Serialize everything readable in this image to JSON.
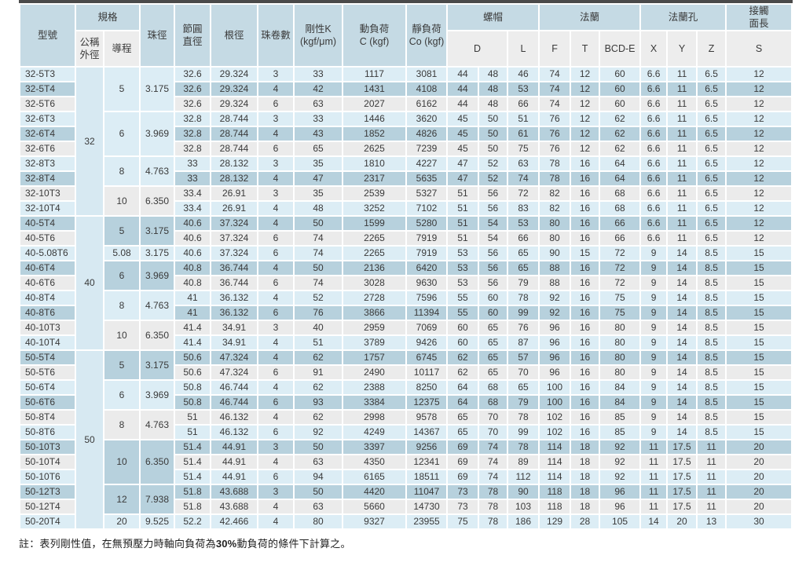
{
  "colors": {
    "top_rule": "#4a4a4a",
    "header_blue": "#c5dae4",
    "subheader_gray": "#ededed",
    "row_light_blue": "#dcedf5",
    "row_dark_blue": "#b7d1dd",
    "row_gray": "#ebebeb",
    "od_cell_blue": "#d7e9f2"
  },
  "table": {
    "header": {
      "model": "型號",
      "spec": "規格",
      "nominal_od": "公稱\n外徑",
      "lead": "導程",
      "ball_dia": "珠徑",
      "pitch_dia": "節圓\n直徑",
      "root_dia": "根徑",
      "circuits": "珠卷數",
      "rigidity": "剛性K\n(kgf/μm)",
      "dynamic_load": "動負荷\nC (kgf)",
      "static_load": "靜負荷\nCo (kgf)",
      "nut": "螺帽",
      "nut_d": "D",
      "nut_l": "L",
      "flange": "法蘭",
      "flange_f": "F",
      "flange_t": "T",
      "flange_bcd": "BCD-E",
      "holes": "法蘭孔",
      "hole_x": "X",
      "hole_y": "Y",
      "hole_z": "Z",
      "contact": "接觸\n面長",
      "contact_s": "S"
    },
    "od_groups": [
      {
        "label": "32",
        "rows": 10
      },
      {
        "label": "40",
        "rows": 9
      },
      {
        "label": "50",
        "rows": 12
      }
    ],
    "lead_groups": [
      {
        "lead": "5",
        "ball": "3.175",
        "rows": 3
      },
      {
        "lead": "6",
        "ball": "3.969",
        "rows": 3
      },
      {
        "lead": "8",
        "ball": "4.763",
        "rows": 2
      },
      {
        "lead": "10",
        "ball": "6.350",
        "rows": 2
      },
      {
        "lead": "5",
        "ball": "3.175",
        "rows": 2
      },
      {
        "lead": "5.08",
        "ball": "3.175",
        "rows": 1
      },
      {
        "lead": "6",
        "ball": "3.969",
        "rows": 2
      },
      {
        "lead": "8",
        "ball": "4.763",
        "rows": 2
      },
      {
        "lead": "10",
        "ball": "6.350",
        "rows": 2
      },
      {
        "lead": "5",
        "ball": "3.175",
        "rows": 2
      },
      {
        "lead": "6",
        "ball": "3.969",
        "rows": 2
      },
      {
        "lead": "8",
        "ball": "4.763",
        "rows": 2
      },
      {
        "lead": "10",
        "ball": "6.350",
        "rows": 3
      },
      {
        "lead": "12",
        "ball": "7.938",
        "rows": 2
      },
      {
        "lead": "20",
        "ball": "9.525",
        "rows": 1
      }
    ],
    "rows": [
      {
        "model": "32-5T3",
        "pcd": "32.6",
        "root": "29.324",
        "circuits": "3",
        "k": "33",
        "c": "1117",
        "co": "3081",
        "d1": "44",
        "d2": "48",
        "l": "46",
        "f": "74",
        "t": "12",
        "bcd": "60",
        "x": "6.6",
        "y": "11",
        "z": "6.5",
        "s": "12"
      },
      {
        "model": "32-5T4",
        "pcd": "32.6",
        "root": "29.324",
        "circuits": "4",
        "k": "42",
        "c": "1431",
        "co": "4108",
        "d1": "44",
        "d2": "48",
        "l": "53",
        "f": "74",
        "t": "12",
        "bcd": "60",
        "x": "6.6",
        "y": "11",
        "z": "6.5",
        "s": "12"
      },
      {
        "model": "32-5T6",
        "pcd": "32.6",
        "root": "29.324",
        "circuits": "6",
        "k": "63",
        "c": "2027",
        "co": "6162",
        "d1": "44",
        "d2": "48",
        "l": "66",
        "f": "74",
        "t": "12",
        "bcd": "60",
        "x": "6.6",
        "y": "11",
        "z": "6.5",
        "s": "12"
      },
      {
        "model": "32-6T3",
        "pcd": "32.8",
        "root": "28.744",
        "circuits": "3",
        "k": "33",
        "c": "1446",
        "co": "3620",
        "d1": "45",
        "d2": "50",
        "l": "51",
        "f": "76",
        "t": "12",
        "bcd": "62",
        "x": "6.6",
        "y": "11",
        "z": "6.5",
        "s": "12"
      },
      {
        "model": "32-6T4",
        "pcd": "32.8",
        "root": "28.744",
        "circuits": "4",
        "k": "43",
        "c": "1852",
        "co": "4826",
        "d1": "45",
        "d2": "50",
        "l": "61",
        "f": "76",
        "t": "12",
        "bcd": "62",
        "x": "6.6",
        "y": "11",
        "z": "6.5",
        "s": "12"
      },
      {
        "model": "32-6T6",
        "pcd": "32.8",
        "root": "28.744",
        "circuits": "6",
        "k": "65",
        "c": "2625",
        "co": "7239",
        "d1": "45",
        "d2": "50",
        "l": "75",
        "f": "76",
        "t": "12",
        "bcd": "62",
        "x": "6.6",
        "y": "11",
        "z": "6.5",
        "s": "12"
      },
      {
        "model": "32-8T3",
        "pcd": "33",
        "root": "28.132",
        "circuits": "3",
        "k": "35",
        "c": "1810",
        "co": "4227",
        "d1": "47",
        "d2": "52",
        "l": "63",
        "f": "78",
        "t": "16",
        "bcd": "64",
        "x": "6.6",
        "y": "11",
        "z": "6.5",
        "s": "12"
      },
      {
        "model": "32-8T4",
        "pcd": "33",
        "root": "28.132",
        "circuits": "4",
        "k": "47",
        "c": "2317",
        "co": "5635",
        "d1": "47",
        "d2": "52",
        "l": "74",
        "f": "78",
        "t": "16",
        "bcd": "64",
        "x": "6.6",
        "y": "11",
        "z": "6.5",
        "s": "12"
      },
      {
        "model": "32-10T3",
        "pcd": "33.4",
        "root": "26.91",
        "circuits": "3",
        "k": "35",
        "c": "2539",
        "co": "5327",
        "d1": "51",
        "d2": "56",
        "l": "72",
        "f": "82",
        "t": "16",
        "bcd": "68",
        "x": "6.6",
        "y": "11",
        "z": "6.5",
        "s": "12"
      },
      {
        "model": "32-10T4",
        "pcd": "33.4",
        "root": "26.91",
        "circuits": "4",
        "k": "48",
        "c": "3252",
        "co": "7102",
        "d1": "51",
        "d2": "56",
        "l": "83",
        "f": "82",
        "t": "16",
        "bcd": "68",
        "x": "6.6",
        "y": "11",
        "z": "6.5",
        "s": "12"
      },
      {
        "model": "40-5T4",
        "pcd": "40.6",
        "root": "37.324",
        "circuits": "4",
        "k": "50",
        "c": "1599",
        "co": "5280",
        "d1": "51",
        "d2": "54",
        "l": "53",
        "f": "80",
        "t": "16",
        "bcd": "66",
        "x": "6.6",
        "y": "11",
        "z": "6.5",
        "s": "12"
      },
      {
        "model": "40-5T6",
        "pcd": "40.6",
        "root": "37.324",
        "circuits": "6",
        "k": "74",
        "c": "2265",
        "co": "7919",
        "d1": "51",
        "d2": "54",
        "l": "66",
        "f": "80",
        "t": "16",
        "bcd": "66",
        "x": "6.6",
        "y": "11",
        "z": "6.5",
        "s": "12"
      },
      {
        "model": "40-5.08T6",
        "pcd": "40.6",
        "root": "37.324",
        "circuits": "6",
        "k": "74",
        "c": "2265",
        "co": "7919",
        "d1": "53",
        "d2": "56",
        "l": "65",
        "f": "90",
        "t": "15",
        "bcd": "72",
        "x": "9",
        "y": "14",
        "z": "8.5",
        "s": "15"
      },
      {
        "model": "40-6T4",
        "pcd": "40.8",
        "root": "36.744",
        "circuits": "4",
        "k": "50",
        "c": "2136",
        "co": "6420",
        "d1": "53",
        "d2": "56",
        "l": "65",
        "f": "88",
        "t": "16",
        "bcd": "72",
        "x": "9",
        "y": "14",
        "z": "8.5",
        "s": "15"
      },
      {
        "model": "40-6T6",
        "pcd": "40.8",
        "root": "36.744",
        "circuits": "6",
        "k": "74",
        "c": "3028",
        "co": "9630",
        "d1": "53",
        "d2": "56",
        "l": "79",
        "f": "88",
        "t": "16",
        "bcd": "72",
        "x": "9",
        "y": "14",
        "z": "8.5",
        "s": "15"
      },
      {
        "model": "40-8T4",
        "pcd": "41",
        "root": "36.132",
        "circuits": "4",
        "k": "52",
        "c": "2728",
        "co": "7596",
        "d1": "55",
        "d2": "60",
        "l": "78",
        "f": "92",
        "t": "16",
        "bcd": "75",
        "x": "9",
        "y": "14",
        "z": "8.5",
        "s": "15"
      },
      {
        "model": "40-8T6",
        "pcd": "41",
        "root": "36.132",
        "circuits": "6",
        "k": "76",
        "c": "3866",
        "co": "11394",
        "d1": "55",
        "d2": "60",
        "l": "99",
        "f": "92",
        "t": "16",
        "bcd": "75",
        "x": "9",
        "y": "14",
        "z": "8.5",
        "s": "15"
      },
      {
        "model": "40-10T3",
        "pcd": "41.4",
        "root": "34.91",
        "circuits": "3",
        "k": "40",
        "c": "2959",
        "co": "7069",
        "d1": "60",
        "d2": "65",
        "l": "76",
        "f": "96",
        "t": "16",
        "bcd": "80",
        "x": "9",
        "y": "14",
        "z": "8.5",
        "s": "15"
      },
      {
        "model": "40-10T4",
        "pcd": "41.4",
        "root": "34.91",
        "circuits": "4",
        "k": "51",
        "c": "3789",
        "co": "9426",
        "d1": "60",
        "d2": "65",
        "l": "87",
        "f": "96",
        "t": "16",
        "bcd": "80",
        "x": "9",
        "y": "14",
        "z": "8.5",
        "s": "15"
      },
      {
        "model": "50-5T4",
        "pcd": "50.6",
        "root": "47.324",
        "circuits": "4",
        "k": "62",
        "c": "1757",
        "co": "6745",
        "d1": "62",
        "d2": "65",
        "l": "57",
        "f": "96",
        "t": "16",
        "bcd": "80",
        "x": "9",
        "y": "14",
        "z": "8.5",
        "s": "15"
      },
      {
        "model": "50-5T6",
        "pcd": "50.6",
        "root": "47.324",
        "circuits": "6",
        "k": "91",
        "c": "2490",
        "co": "10117",
        "d1": "62",
        "d2": "65",
        "l": "70",
        "f": "96",
        "t": "16",
        "bcd": "80",
        "x": "9",
        "y": "14",
        "z": "8.5",
        "s": "15"
      },
      {
        "model": "50-6T4",
        "pcd": "50.8",
        "root": "46.744",
        "circuits": "4",
        "k": "62",
        "c": "2388",
        "co": "8250",
        "d1": "64",
        "d2": "68",
        "l": "65",
        "f": "100",
        "t": "16",
        "bcd": "84",
        "x": "9",
        "y": "14",
        "z": "8.5",
        "s": "15"
      },
      {
        "model": "50-6T6",
        "pcd": "50.8",
        "root": "46.744",
        "circuits": "6",
        "k": "93",
        "c": "3384",
        "co": "12375",
        "d1": "64",
        "d2": "68",
        "l": "79",
        "f": "100",
        "t": "16",
        "bcd": "84",
        "x": "9",
        "y": "14",
        "z": "8.5",
        "s": "15"
      },
      {
        "model": "50-8T4",
        "pcd": "51",
        "root": "46.132",
        "circuits": "4",
        "k": "62",
        "c": "2998",
        "co": "9578",
        "d1": "65",
        "d2": "70",
        "l": "78",
        "f": "102",
        "t": "16",
        "bcd": "85",
        "x": "9",
        "y": "14",
        "z": "8.5",
        "s": "15"
      },
      {
        "model": "50-8T6",
        "pcd": "51",
        "root": "46.132",
        "circuits": "6",
        "k": "92",
        "c": "4249",
        "co": "14367",
        "d1": "65",
        "d2": "70",
        "l": "99",
        "f": "102",
        "t": "16",
        "bcd": "85",
        "x": "9",
        "y": "14",
        "z": "8.5",
        "s": "15"
      },
      {
        "model": "50-10T3",
        "pcd": "51.4",
        "root": "44.91",
        "circuits": "3",
        "k": "50",
        "c": "3397",
        "co": "9256",
        "d1": "69",
        "d2": "74",
        "l": "78",
        "f": "114",
        "t": "18",
        "bcd": "92",
        "x": "11",
        "y": "17.5",
        "z": "11",
        "s": "20"
      },
      {
        "model": "50-10T4",
        "pcd": "51.4",
        "root": "44.91",
        "circuits": "4",
        "k": "63",
        "c": "4350",
        "co": "12341",
        "d1": "69",
        "d2": "74",
        "l": "89",
        "f": "114",
        "t": "18",
        "bcd": "92",
        "x": "11",
        "y": "17.5",
        "z": "11",
        "s": "20"
      },
      {
        "model": "50-10T6",
        "pcd": "51.4",
        "root": "44.91",
        "circuits": "6",
        "k": "94",
        "c": "6165",
        "co": "18511",
        "d1": "69",
        "d2": "74",
        "l": "112",
        "f": "114",
        "t": "18",
        "bcd": "92",
        "x": "11",
        "y": "17.5",
        "z": "11",
        "s": "20"
      },
      {
        "model": "50-12T3",
        "pcd": "51.8",
        "root": "43.688",
        "circuits": "3",
        "k": "50",
        "c": "4420",
        "co": "11047",
        "d1": "73",
        "d2": "78",
        "l": "90",
        "f": "118",
        "t": "18",
        "bcd": "96",
        "x": "11",
        "y": "17.5",
        "z": "11",
        "s": "20"
      },
      {
        "model": "50-12T4",
        "pcd": "51.8",
        "root": "43.688",
        "circuits": "4",
        "k": "63",
        "c": "5660",
        "co": "14730",
        "d1": "73",
        "d2": "78",
        "l": "103",
        "f": "118",
        "t": "18",
        "bcd": "96",
        "x": "11",
        "y": "17.5",
        "z": "11",
        "s": "20"
      },
      {
        "model": "50-20T4",
        "pcd": "52.2",
        "root": "42.466",
        "circuits": "4",
        "k": "80",
        "c": "9327",
        "co": "23955",
        "d1": "75",
        "d2": "78",
        "l": "186",
        "f": "129",
        "t": "28",
        "bcd": "105",
        "x": "14",
        "y": "20",
        "z": "13",
        "s": "30"
      }
    ]
  },
  "footnote": {
    "pre": "註：表列剛性值，在無預壓力時軸向負荷為",
    "bold": "30%",
    "post": "動負荷的條件下計算之。"
  }
}
